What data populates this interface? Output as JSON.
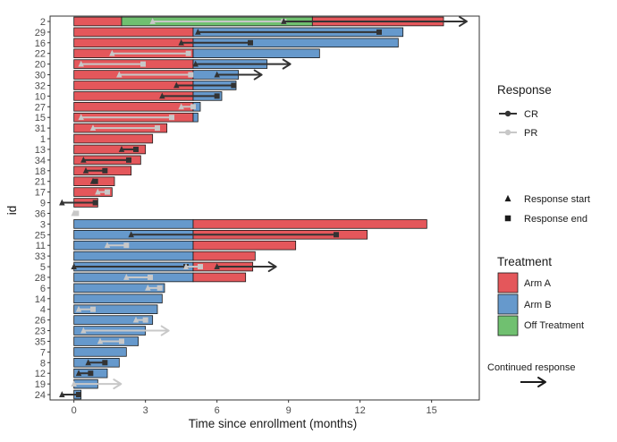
{
  "chart_data": {
    "type": "swimmer",
    "xlabel": "Time since enrollment (months)",
    "ylabel": "id",
    "xlim": [
      -1,
      17
    ],
    "xticks": [
      0,
      3,
      6,
      9,
      12,
      15
    ],
    "grid": false,
    "colors": {
      "arm_a": "#E4575B",
      "arm_b": "#6699CC",
      "off_treatment": "#70C070",
      "cr": "#333333",
      "pr": "#C8C8C8"
    },
    "legend": {
      "response": {
        "title": "Response",
        "items": [
          {
            "key": "cr",
            "label": "CR"
          },
          {
            "key": "pr",
            "label": "PR"
          }
        ]
      },
      "markers": {
        "items": [
          {
            "key": "start",
            "label": "Response start"
          },
          {
            "key": "end",
            "label": "Response end"
          }
        ]
      },
      "treatment": {
        "title": "Treatment",
        "items": [
          {
            "key": "arm_a",
            "label": "Arm A"
          },
          {
            "key": "arm_b",
            "label": "Arm B"
          },
          {
            "key": "off_treatment",
            "label": "Off Treatment"
          }
        ]
      },
      "continued": {
        "label": "Continued response"
      }
    },
    "subjects": [
      {
        "id": "2",
        "segments": [
          {
            "arm": "arm_a",
            "start": 0,
            "end": 2
          },
          {
            "arm": "off_treatment",
            "start": 2,
            "end": 10
          },
          {
            "arm": "arm_a",
            "start": 10,
            "end": 15.5
          }
        ],
        "responses": [
          {
            "type": "pr",
            "start": 3.3,
            "end": 8.8
          },
          {
            "type": "cr",
            "start": 8.8,
            "end": 15.5,
            "continued": true
          }
        ]
      },
      {
        "id": "29",
        "segments": [
          {
            "arm": "arm_a",
            "start": 0,
            "end": 5
          },
          {
            "arm": "arm_b",
            "start": 5,
            "end": 13.8
          }
        ],
        "responses": [
          {
            "type": "cr",
            "start": 5.2,
            "end": 12.8
          }
        ]
      },
      {
        "id": "16",
        "segments": [
          {
            "arm": "arm_a",
            "start": 0,
            "end": 5
          },
          {
            "arm": "arm_b",
            "start": 5,
            "end": 13.6
          }
        ],
        "responses": [
          {
            "type": "cr",
            "start": 4.5,
            "end": 7.4
          }
        ]
      },
      {
        "id": "22",
        "segments": [
          {
            "arm": "arm_a",
            "start": 0,
            "end": 5
          },
          {
            "arm": "arm_b",
            "start": 5,
            "end": 10.3
          }
        ],
        "responses": [
          {
            "type": "pr",
            "start": 1.6,
            "end": 4.8
          }
        ]
      },
      {
        "id": "20",
        "segments": [
          {
            "arm": "arm_a",
            "start": 0,
            "end": 5
          },
          {
            "arm": "arm_b",
            "start": 5,
            "end": 8.1
          }
        ],
        "responses": [
          {
            "type": "pr",
            "start": 0.3,
            "end": 2.9
          },
          {
            "type": "cr",
            "start": 5.1,
            "end": 8.1,
            "continued": true
          }
        ]
      },
      {
        "id": "30",
        "segments": [
          {
            "arm": "arm_a",
            "start": 0,
            "end": 5
          },
          {
            "arm": "arm_b",
            "start": 5,
            "end": 6.9
          }
        ],
        "responses": [
          {
            "type": "pr",
            "start": 1.9,
            "end": 4.9
          },
          {
            "type": "cr",
            "start": 6.0,
            "end": 6.9,
            "continued": true
          }
        ]
      },
      {
        "id": "32",
        "segments": [
          {
            "arm": "arm_a",
            "start": 0,
            "end": 5
          },
          {
            "arm": "arm_b",
            "start": 5,
            "end": 6.8
          }
        ],
        "responses": [
          {
            "type": "cr",
            "start": 4.3,
            "end": 6.7
          }
        ]
      },
      {
        "id": "10",
        "segments": [
          {
            "arm": "arm_a",
            "start": 0,
            "end": 5
          },
          {
            "arm": "arm_b",
            "start": 5,
            "end": 6.2
          }
        ],
        "responses": [
          {
            "type": "cr",
            "start": 3.7,
            "end": 6.0
          }
        ]
      },
      {
        "id": "27",
        "segments": [
          {
            "arm": "arm_a",
            "start": 0,
            "end": 5
          },
          {
            "arm": "arm_b",
            "start": 5,
            "end": 5.3
          }
        ],
        "responses": [
          {
            "type": "pr",
            "start": 4.5,
            "end": 5.0
          }
        ]
      },
      {
        "id": "15",
        "segments": [
          {
            "arm": "arm_a",
            "start": 0,
            "end": 5
          },
          {
            "arm": "arm_b",
            "start": 5,
            "end": 5.2
          }
        ],
        "responses": [
          {
            "type": "pr",
            "start": 0.3,
            "end": 4.1
          }
        ]
      },
      {
        "id": "31",
        "segments": [
          {
            "arm": "arm_a",
            "start": 0,
            "end": 3.9
          }
        ],
        "responses": [
          {
            "type": "pr",
            "start": 0.8,
            "end": 3.5
          }
        ]
      },
      {
        "id": "1",
        "segments": [
          {
            "arm": "arm_a",
            "start": 0,
            "end": 3.3
          }
        ],
        "responses": []
      },
      {
        "id": "13",
        "segments": [
          {
            "arm": "arm_a",
            "start": 0,
            "end": 3.0
          }
        ],
        "responses": [
          {
            "type": "cr",
            "start": 2.0,
            "end": 2.6
          }
        ]
      },
      {
        "id": "34",
        "segments": [
          {
            "arm": "arm_a",
            "start": 0,
            "end": 2.8
          }
        ],
        "responses": [
          {
            "type": "cr",
            "start": 0.4,
            "end": 2.3
          }
        ]
      },
      {
        "id": "18",
        "segments": [
          {
            "arm": "arm_a",
            "start": 0,
            "end": 2.4
          }
        ],
        "responses": [
          {
            "type": "cr",
            "start": 0.5,
            "end": 1.3
          }
        ]
      },
      {
        "id": "21",
        "segments": [
          {
            "arm": "arm_a",
            "start": 0,
            "end": 1.7
          }
        ],
        "responses": [
          {
            "type": "cr",
            "start": 0.8,
            "end": 0.9
          }
        ]
      },
      {
        "id": "17",
        "segments": [
          {
            "arm": "arm_a",
            "start": 0,
            "end": 1.6
          }
        ],
        "responses": [
          {
            "type": "pr",
            "start": 1.0,
            "end": 1.4
          }
        ]
      },
      {
        "id": "9",
        "segments": [
          {
            "arm": "arm_a",
            "start": 0,
            "end": 1.0
          }
        ],
        "responses": [
          {
            "type": "cr",
            "start": -0.5,
            "end": 0.9
          }
        ]
      },
      {
        "id": "36",
        "segments": [],
        "responses": [
          {
            "type": "pr",
            "start": 0.0,
            "end": 0.1
          }
        ]
      },
      {
        "id": "3",
        "segments": [
          {
            "arm": "arm_b",
            "start": 0,
            "end": 5
          },
          {
            "arm": "arm_a",
            "start": 5,
            "end": 14.8
          }
        ],
        "responses": []
      },
      {
        "id": "25",
        "segments": [
          {
            "arm": "arm_b",
            "start": 0,
            "end": 5
          },
          {
            "arm": "arm_a",
            "start": 5,
            "end": 12.3
          }
        ],
        "responses": [
          {
            "type": "cr",
            "start": 2.4,
            "end": 11.0
          }
        ]
      },
      {
        "id": "11",
        "segments": [
          {
            "arm": "arm_b",
            "start": 0,
            "end": 5
          },
          {
            "arm": "arm_a",
            "start": 5,
            "end": 9.3
          }
        ],
        "responses": [
          {
            "type": "pr",
            "start": 1.4,
            "end": 2.2
          }
        ]
      },
      {
        "id": "33",
        "segments": [
          {
            "arm": "arm_b",
            "start": 0,
            "end": 5
          },
          {
            "arm": "arm_a",
            "start": 5,
            "end": 7.6
          }
        ],
        "responses": []
      },
      {
        "id": "5",
        "segments": [
          {
            "arm": "arm_b",
            "start": 0,
            "end": 5
          },
          {
            "arm": "arm_a",
            "start": 5,
            "end": 7.5
          }
        ],
        "responses": [
          {
            "type": "cr",
            "start": 0.0,
            "end": 4.7
          },
          {
            "type": "pr",
            "start": 4.7,
            "end": 5.3
          },
          {
            "type": "cr",
            "start": 6.0,
            "end": 7.5,
            "continued": true
          }
        ]
      },
      {
        "id": "28",
        "segments": [
          {
            "arm": "arm_b",
            "start": 0,
            "end": 5
          },
          {
            "arm": "arm_a",
            "start": 5,
            "end": 7.2
          }
        ],
        "responses": [
          {
            "type": "pr",
            "start": 2.2,
            "end": 3.2
          }
        ]
      },
      {
        "id": "6",
        "segments": [
          {
            "arm": "arm_b",
            "start": 0,
            "end": 3.8
          }
        ],
        "responses": [
          {
            "type": "pr",
            "start": 3.1,
            "end": 3.6
          }
        ]
      },
      {
        "id": "14",
        "segments": [
          {
            "arm": "arm_b",
            "start": 0,
            "end": 3.7
          }
        ],
        "responses": []
      },
      {
        "id": "4",
        "segments": [
          {
            "arm": "arm_b",
            "start": 0,
            "end": 3.5
          }
        ],
        "responses": [
          {
            "type": "pr",
            "start": 0.2,
            "end": 0.8
          }
        ]
      },
      {
        "id": "26",
        "segments": [
          {
            "arm": "arm_b",
            "start": 0,
            "end": 3.3
          }
        ],
        "responses": [
          {
            "type": "pr",
            "start": 2.6,
            "end": 3.0
          }
        ]
      },
      {
        "id": "23",
        "segments": [
          {
            "arm": "arm_b",
            "start": 0,
            "end": 3.0
          }
        ],
        "responses": [
          {
            "type": "pr",
            "start": 0.4,
            "end": 3.0,
            "continued": true
          }
        ]
      },
      {
        "id": "35",
        "segments": [
          {
            "arm": "arm_b",
            "start": 0,
            "end": 2.7
          }
        ],
        "responses": [
          {
            "type": "pr",
            "start": 1.1,
            "end": 2.0
          }
        ]
      },
      {
        "id": "7",
        "segments": [
          {
            "arm": "arm_b",
            "start": 0,
            "end": 2.2
          }
        ],
        "responses": []
      },
      {
        "id": "8",
        "segments": [
          {
            "arm": "arm_b",
            "start": 0,
            "end": 1.9
          }
        ],
        "responses": [
          {
            "type": "cr",
            "start": 0.6,
            "end": 1.3
          }
        ]
      },
      {
        "id": "12",
        "segments": [
          {
            "arm": "arm_b",
            "start": 0,
            "end": 1.4
          }
        ],
        "responses": [
          {
            "type": "cr",
            "start": 0.2,
            "end": 0.7
          }
        ]
      },
      {
        "id": "19",
        "segments": [
          {
            "arm": "arm_b",
            "start": 0,
            "end": 1.0
          }
        ],
        "responses": [
          {
            "type": "pr",
            "start": 0.0,
            "end": 1.0,
            "continued": true
          }
        ]
      },
      {
        "id": "24",
        "segments": [
          {
            "arm": "arm_b",
            "start": 0,
            "end": 0.3
          }
        ],
        "responses": [
          {
            "type": "cr",
            "start": -0.5,
            "end": 0.2
          }
        ]
      }
    ]
  }
}
